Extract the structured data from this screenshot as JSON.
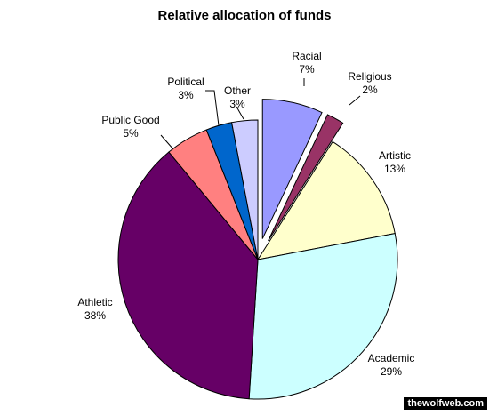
{
  "chart_data": {
    "type": "pie",
    "title": "Relative allocation of funds",
    "slices": [
      {
        "label": "Racial",
        "pct_label": "7%",
        "value": 7,
        "color": "#9999ff",
        "exploded": true
      },
      {
        "label": "Religious",
        "pct_label": "2%",
        "value": 2,
        "color": "#993366",
        "exploded": true
      },
      {
        "label": "Artistic",
        "pct_label": "13%",
        "value": 13,
        "color": "#ffffcc",
        "exploded": false
      },
      {
        "label": "Academic",
        "pct_label": "29%",
        "value": 29,
        "color": "#ccffff",
        "exploded": false
      },
      {
        "label": "Athletic",
        "pct_label": "38%",
        "value": 38,
        "color": "#660066",
        "exploded": false
      },
      {
        "label": "Public Good",
        "pct_label": "5%",
        "value": 5,
        "color": "#ff8080",
        "exploded": false
      },
      {
        "label": "Political",
        "pct_label": "3%",
        "value": 3,
        "color": "#0066cc",
        "exploded": false
      },
      {
        "label": "Other",
        "pct_label": "3%",
        "value": 3,
        "color": "#ccccff",
        "exploded": false
      }
    ]
  },
  "watermark": "thewolfweb.com"
}
